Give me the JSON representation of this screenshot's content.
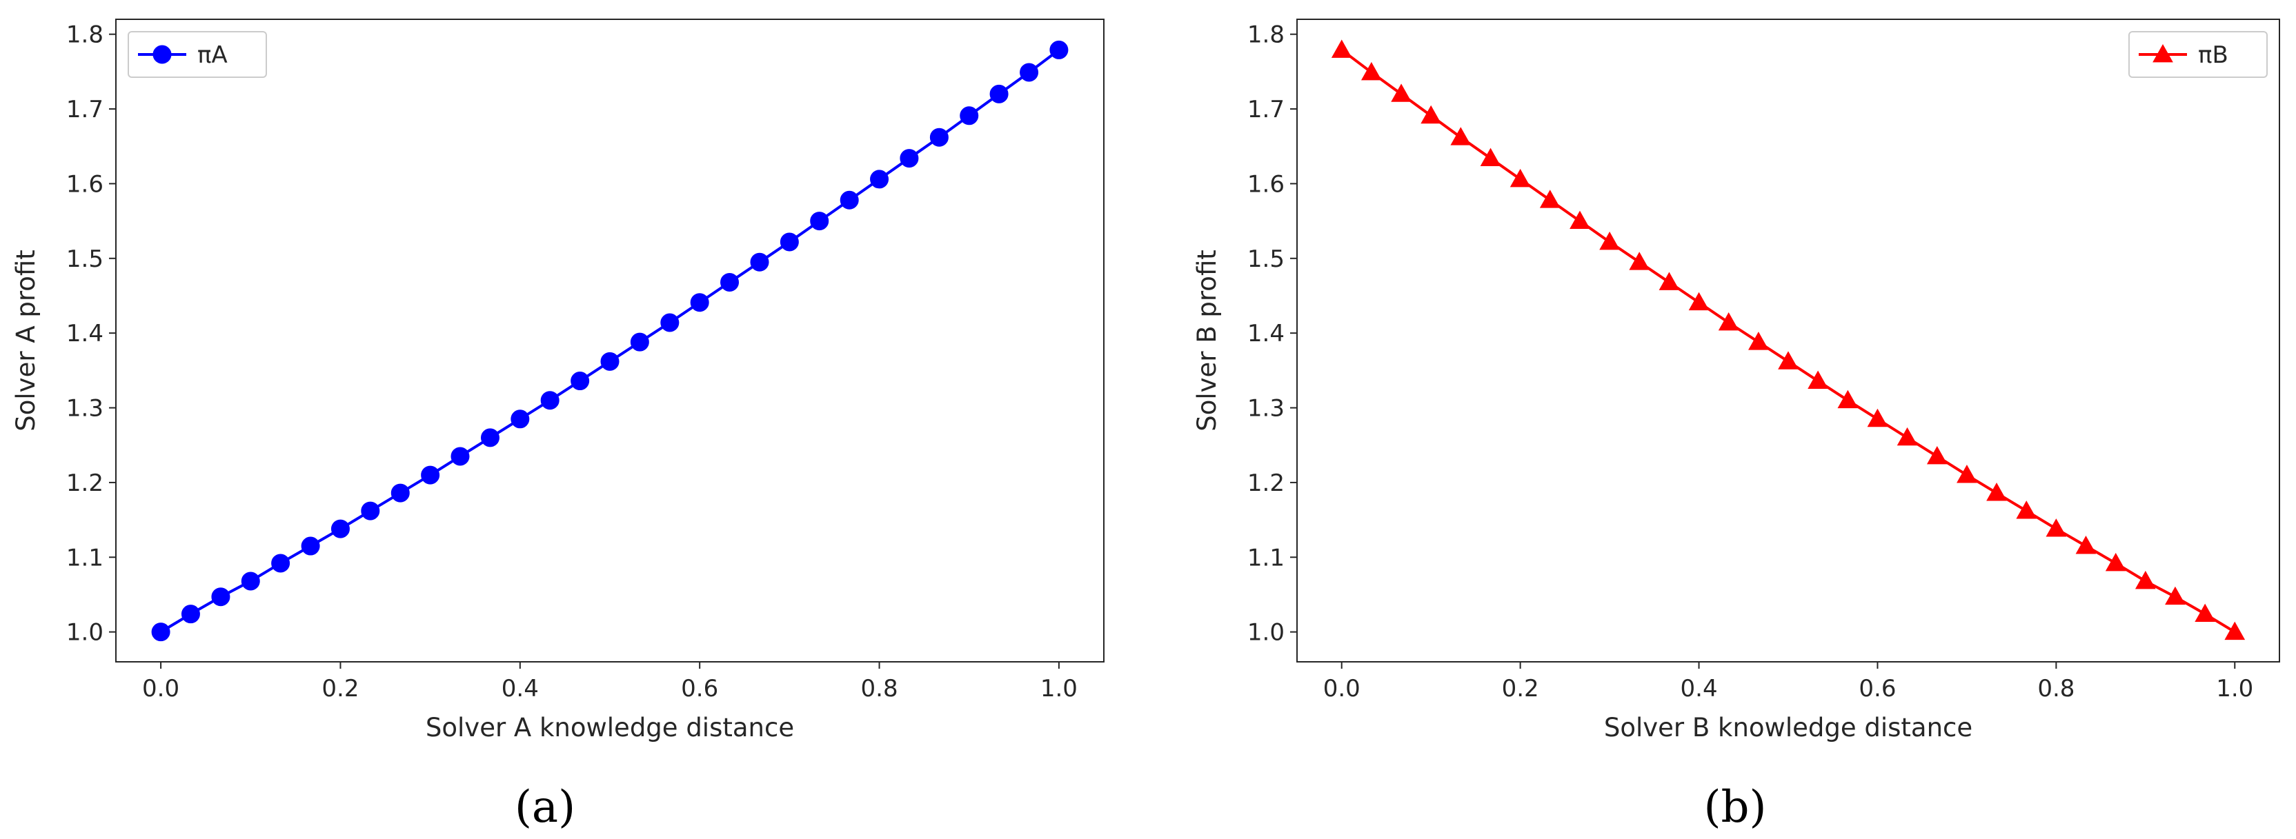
{
  "chart_data": [
    {
      "type": "line",
      "panel_label": "a",
      "xlabel": "Solver A knowledge distance",
      "ylabel": "Solver A profit",
      "xlim": [
        -0.05,
        1.05
      ],
      "ylim": [
        0.96,
        1.82
      ],
      "xticks": [
        0.0,
        0.2,
        0.4,
        0.6,
        0.8,
        1.0
      ],
      "xtick_labels": [
        "0.0",
        "0.2",
        "0.4",
        "0.6",
        "0.8",
        "1.0"
      ],
      "yticks": [
        1.0,
        1.1,
        1.2,
        1.3,
        1.4,
        1.5,
        1.6,
        1.7,
        1.8
      ],
      "ytick_labels": [
        "1.0",
        "1.1",
        "1.2",
        "1.3",
        "1.4",
        "1.5",
        "1.6",
        "1.7",
        "1.8"
      ],
      "grid": false,
      "legend_position": "top-left",
      "series": [
        {
          "name": "πA",
          "color": "#0000ff",
          "marker": "circle",
          "x": [
            0.0,
            0.0333,
            0.0667,
            0.1,
            0.1333,
            0.1667,
            0.2,
            0.2333,
            0.2667,
            0.3,
            0.3333,
            0.3667,
            0.4,
            0.4333,
            0.4667,
            0.5,
            0.5333,
            0.5667,
            0.6,
            0.6333,
            0.6667,
            0.7,
            0.7333,
            0.7667,
            0.8,
            0.8333,
            0.8667,
            0.9,
            0.9333,
            0.9667,
            1.0
          ],
          "y": [
            1.0,
            1.024,
            1.047,
            1.068,
            1.092,
            1.115,
            1.138,
            1.162,
            1.186,
            1.21,
            1.235,
            1.26,
            1.285,
            1.31,
            1.336,
            1.362,
            1.388,
            1.414,
            1.441,
            1.468,
            1.495,
            1.522,
            1.55,
            1.578,
            1.606,
            1.634,
            1.662,
            1.691,
            1.72,
            1.749,
            1.779
          ]
        }
      ]
    },
    {
      "type": "line",
      "panel_label": "b",
      "xlabel": "Solver B knowledge distance",
      "ylabel": "Solver B profit",
      "xlim": [
        -0.05,
        1.05
      ],
      "ylim": [
        0.96,
        1.82
      ],
      "xticks": [
        0.0,
        0.2,
        0.4,
        0.6,
        0.8,
        1.0
      ],
      "xtick_labels": [
        "0.0",
        "0.2",
        "0.4",
        "0.6",
        "0.8",
        "1.0"
      ],
      "yticks": [
        1.0,
        1.1,
        1.2,
        1.3,
        1.4,
        1.5,
        1.6,
        1.7,
        1.8
      ],
      "ytick_labels": [
        "1.0",
        "1.1",
        "1.2",
        "1.3",
        "1.4",
        "1.5",
        "1.6",
        "1.7",
        "1.8"
      ],
      "grid": false,
      "legend_position": "top-right",
      "series": [
        {
          "name": "πB",
          "color": "#ff0000",
          "marker": "triangle",
          "x": [
            0.0,
            0.0333,
            0.0667,
            0.1,
            0.1333,
            0.1667,
            0.2,
            0.2333,
            0.2667,
            0.3,
            0.3333,
            0.3667,
            0.4,
            0.4333,
            0.4667,
            0.5,
            0.5333,
            0.5667,
            0.6,
            0.6333,
            0.6667,
            0.7,
            0.7333,
            0.7667,
            0.8,
            0.8333,
            0.8667,
            0.9,
            0.9333,
            0.9667,
            1.0
          ],
          "y": [
            1.779,
            1.749,
            1.72,
            1.691,
            1.662,
            1.634,
            1.606,
            1.578,
            1.55,
            1.522,
            1.495,
            1.468,
            1.441,
            1.414,
            1.388,
            1.362,
            1.336,
            1.31,
            1.285,
            1.26,
            1.235,
            1.21,
            1.186,
            1.162,
            1.138,
            1.115,
            1.092,
            1.068,
            1.047,
            1.024,
            1.0
          ]
        }
      ]
    }
  ],
  "captions": [
    "(a)",
    "(b)"
  ]
}
